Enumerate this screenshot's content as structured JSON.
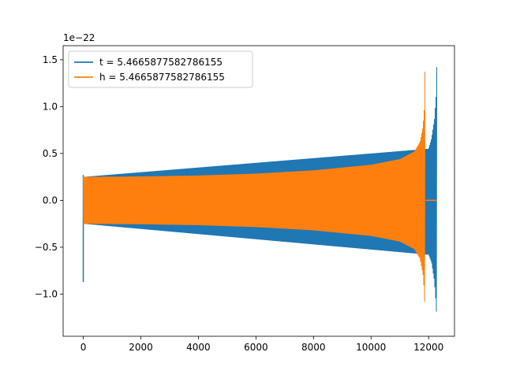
{
  "chart_data": {
    "type": "line",
    "title": "",
    "xlabel": "",
    "ylabel": "",
    "y_offset_label": "1e−22",
    "xlim": [
      -700,
      12900
    ],
    "ylim": [
      -1.45,
      1.65
    ],
    "x_ticks": [
      {
        "value": 0,
        "label": "0"
      },
      {
        "value": 2000,
        "label": "2000"
      },
      {
        "value": 4000,
        "label": "4000"
      },
      {
        "value": 6000,
        "label": "6000"
      },
      {
        "value": 8000,
        "label": "8000"
      },
      {
        "value": 10000,
        "label": "10000"
      },
      {
        "value": 12000,
        "label": "12000"
      }
    ],
    "y_ticks": [
      {
        "value": -1.0,
        "label": "−1.0"
      },
      {
        "value": -0.5,
        "label": "−0.5"
      },
      {
        "value": 0.0,
        "label": "0.0"
      },
      {
        "value": 0.5,
        "label": "0.5"
      },
      {
        "value": 1.0,
        "label": "1.0"
      },
      {
        "value": 1.5,
        "label": "1.5"
      }
    ],
    "grid": false,
    "legend_position": "top-left",
    "series": [
      {
        "name": "t = 5.4665877582786155",
        "color": "#1f77b4",
        "start_spike": {
          "x": 0,
          "upper": 0.27,
          "lower": -0.87
        },
        "envelope": [
          {
            "x": 0,
            "upper": 0.25,
            "lower": -0.25
          },
          {
            "x": 12000,
            "upper": 0.55,
            "lower": -0.58
          },
          {
            "x": 12100,
            "upper": 0.66,
            "lower": -0.66
          },
          {
            "x": 12200,
            "upper": 0.86,
            "lower": -0.86
          },
          {
            "x": 12260,
            "upper": 1.12,
            "lower": -1.12
          },
          {
            "x": 12290,
            "upper": 1.5,
            "lower": -1.32
          }
        ],
        "ringdown": {
          "x_start": 12290,
          "x_end": 12310
        }
      },
      {
        "name": "h = 5.4665877582786155",
        "color": "#ff7f0e",
        "envelope": [
          {
            "x": 0,
            "upper": 0.25,
            "lower": -0.25
          },
          {
            "x": 2000,
            "upper": 0.255,
            "lower": -0.255
          },
          {
            "x": 4000,
            "upper": 0.265,
            "lower": -0.265
          },
          {
            "x": 6000,
            "upper": 0.285,
            "lower": -0.285
          },
          {
            "x": 8000,
            "upper": 0.32,
            "lower": -0.32
          },
          {
            "x": 10000,
            "upper": 0.38,
            "lower": -0.38
          },
          {
            "x": 11000,
            "upper": 0.44,
            "lower": -0.44
          },
          {
            "x": 11500,
            "upper": 0.52,
            "lower": -0.52
          },
          {
            "x": 11700,
            "upper": 0.62,
            "lower": -0.62
          },
          {
            "x": 11800,
            "upper": 0.78,
            "lower": -0.78
          },
          {
            "x": 11850,
            "upper": 0.98,
            "lower": -0.98
          },
          {
            "x": 11880,
            "upper": 1.5,
            "lower": -1.32
          }
        ],
        "tail": {
          "x_start": 11900,
          "x_end": 12290,
          "value": 0.0
        }
      }
    ]
  }
}
